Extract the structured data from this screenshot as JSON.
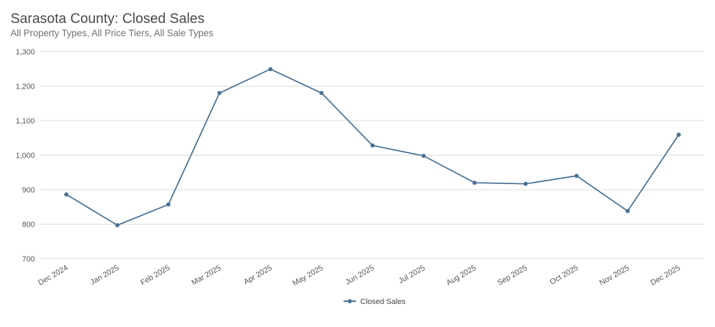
{
  "header": {
    "title": "Sarasota County: Closed Sales",
    "subtitle": "All Property Types, All Price Tiers, All Sale Types"
  },
  "colors": {
    "series": "#4a7296",
    "grid": "#dcdcdc",
    "tick_text": "#555555"
  },
  "chart_data": {
    "type": "line",
    "title": "Sarasota County: Closed Sales",
    "subtitle": "All Property Types, All Price Tiers, All Sale Types",
    "categories": [
      "Dec 2024",
      "Jan 2025",
      "Feb 2025",
      "Mar 2025",
      "Apr 2025",
      "May 2025",
      "Jun 2025",
      "Jul 2025",
      "Aug 2025",
      "Sep 2025",
      "Oct 2025",
      "Nov 2025",
      "Dec 2025"
    ],
    "series": [
      {
        "name": "Closed Sales",
        "values": [
          886,
          797,
          857,
          1180,
          1249,
          1180,
          1028,
          998,
          920,
          917,
          940,
          838,
          1059
        ]
      }
    ],
    "ylim": [
      700,
      1300
    ],
    "yticks": [
      700,
      800,
      900,
      1000,
      1100,
      1200,
      1300
    ],
    "ytick_labels": [
      "700",
      "800",
      "900",
      "1,000",
      "1,100",
      "1,200",
      "1,300"
    ],
    "xlabel": "",
    "ylabel": "",
    "grid": true,
    "legend_position": "bottom-center"
  }
}
